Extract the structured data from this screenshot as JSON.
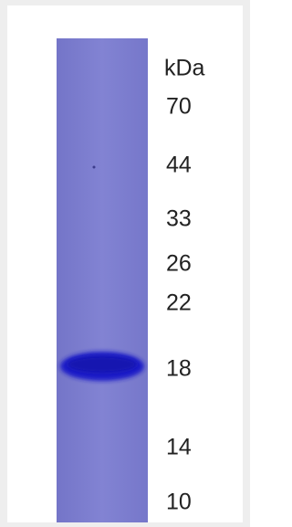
{
  "gel": {
    "unit": "kDa",
    "markers": [
      70,
      44,
      33,
      26,
      22,
      18,
      14,
      10
    ]
  }
}
